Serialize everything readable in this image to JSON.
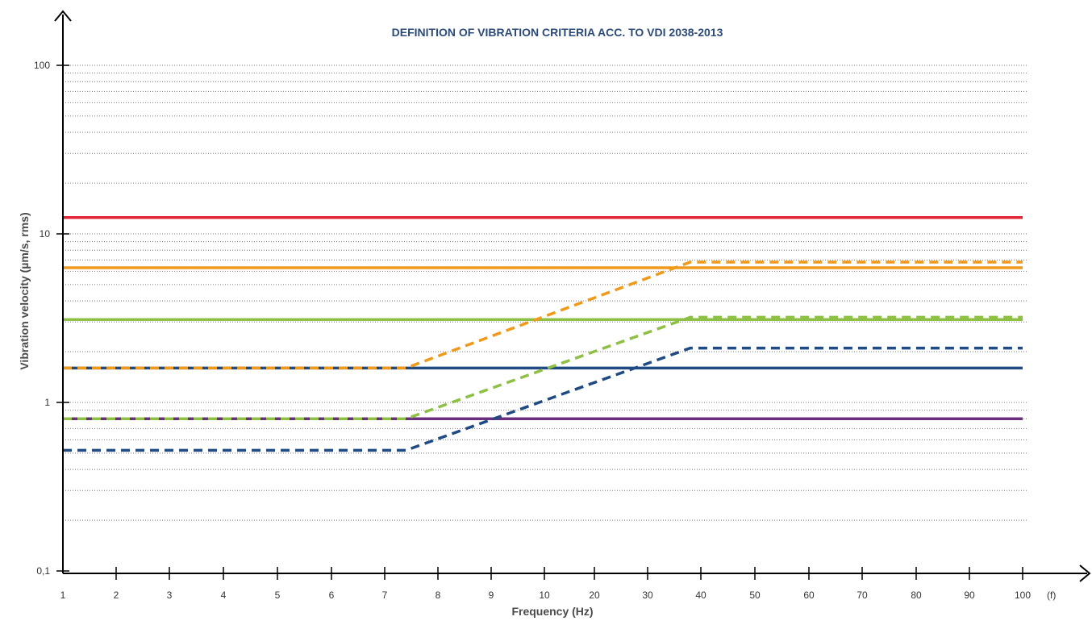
{
  "chart_data": {
    "type": "line",
    "title": "DEFINITION OF VIBRATION CRITERIA ACC. TO VDI 2038-2013",
    "xlabel": "Frequency (Hz)",
    "ylabel": "Vibration velocity  (µm/s, rms)",
    "x_unit_marker": "(f)",
    "y_scale": "log",
    "ylim": [
      0.1,
      100
    ],
    "y_ticks": [
      {
        "value": 0.1,
        "label": "0,1"
      },
      {
        "value": 1,
        "label": "1"
      },
      {
        "value": 10,
        "label": "10"
      },
      {
        "value": 100,
        "label": "100"
      }
    ],
    "x_ticks": [
      "1",
      "2",
      "3",
      "4",
      "5",
      "6",
      "7",
      "8",
      "9",
      "10",
      "20",
      "30",
      "40",
      "50",
      "60",
      "70",
      "80",
      "90",
      "100"
    ],
    "x_tick_values": [
      1,
      2,
      3,
      4,
      5,
      6,
      7,
      8,
      9,
      10,
      20,
      30,
      40,
      50,
      60,
      70,
      80,
      90,
      100
    ],
    "grid": "y-minor dotted",
    "series": [
      {
        "color": "#e32636",
        "style": "solid",
        "points": [
          [
            1,
            12.5
          ],
          [
            100,
            12.5
          ]
        ]
      },
      {
        "color": "#ef9a1a",
        "style": "solid",
        "points": [
          [
            1,
            6.3
          ],
          [
            100,
            6.3
          ]
        ]
      },
      {
        "color": "#8ec045",
        "style": "solid",
        "points": [
          [
            1,
            3.1
          ],
          [
            100,
            3.1
          ]
        ]
      },
      {
        "color": "#1f4a82",
        "style": "solid",
        "points": [
          [
            1,
            1.6
          ],
          [
            100,
            1.6
          ]
        ]
      },
      {
        "color": "#6b2f7f",
        "style": "solid",
        "points": [
          [
            1,
            0.8
          ],
          [
            100,
            0.8
          ]
        ]
      },
      {
        "color": "#ef9a1a",
        "style": "dashed",
        "points": [
          [
            1,
            1.6
          ],
          [
            7.4,
            1.6
          ],
          [
            38,
            6.8
          ],
          [
            100,
            6.8
          ]
        ]
      },
      {
        "color": "#8ec045",
        "style": "dashed",
        "points": [
          [
            1,
            0.8
          ],
          [
            7.4,
            0.8
          ],
          [
            38,
            3.2
          ],
          [
            100,
            3.2
          ]
        ]
      },
      {
        "color": "#1f4a82",
        "style": "dashed",
        "points": [
          [
            1,
            0.52
          ],
          [
            7.4,
            0.52
          ],
          [
            38,
            2.1
          ],
          [
            100,
            2.1
          ]
        ]
      }
    ]
  }
}
